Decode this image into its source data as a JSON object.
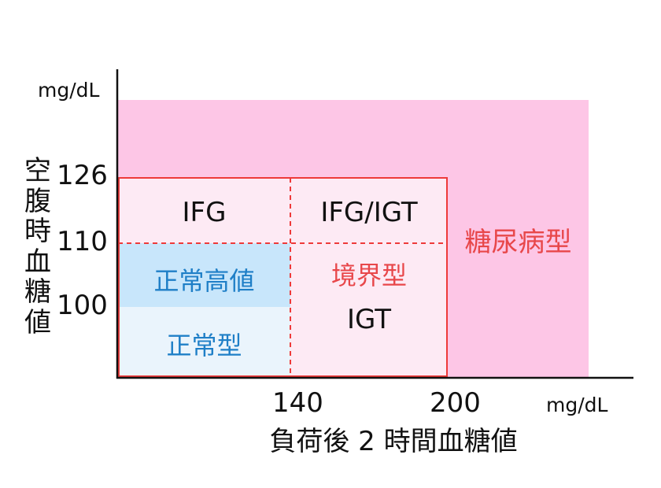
{
  "colors": {
    "diabetic_fill": "#fdc6e6",
    "borderline_fill": "#fdeaf4",
    "normal_fill": "#eaf4fc",
    "normal_high_fill": "#c8e6fb",
    "boundary_line": "#ee3a3a",
    "blue_text": "#1f7fc7",
    "red_text": "#e8474a",
    "axis": "#111111"
  },
  "axes": {
    "y_unit": "mg/dL",
    "x_unit": "mg/dL",
    "y_title_chars": [
      "空",
      "腹",
      "時",
      "血",
      "糖",
      "値"
    ],
    "x_title": "負荷後 2 時間血糖値",
    "y_ticks": [
      "126",
      "110",
      "100"
    ],
    "x_ticks": [
      "140",
      "200"
    ]
  },
  "regions": {
    "diabetes": "糖尿病型",
    "ifg": "IFG",
    "ifg_igt": "IFG/IGT",
    "borderline": "境界型",
    "igt": "IGT",
    "normal_high": "正常高値",
    "normal": "正常型"
  }
}
